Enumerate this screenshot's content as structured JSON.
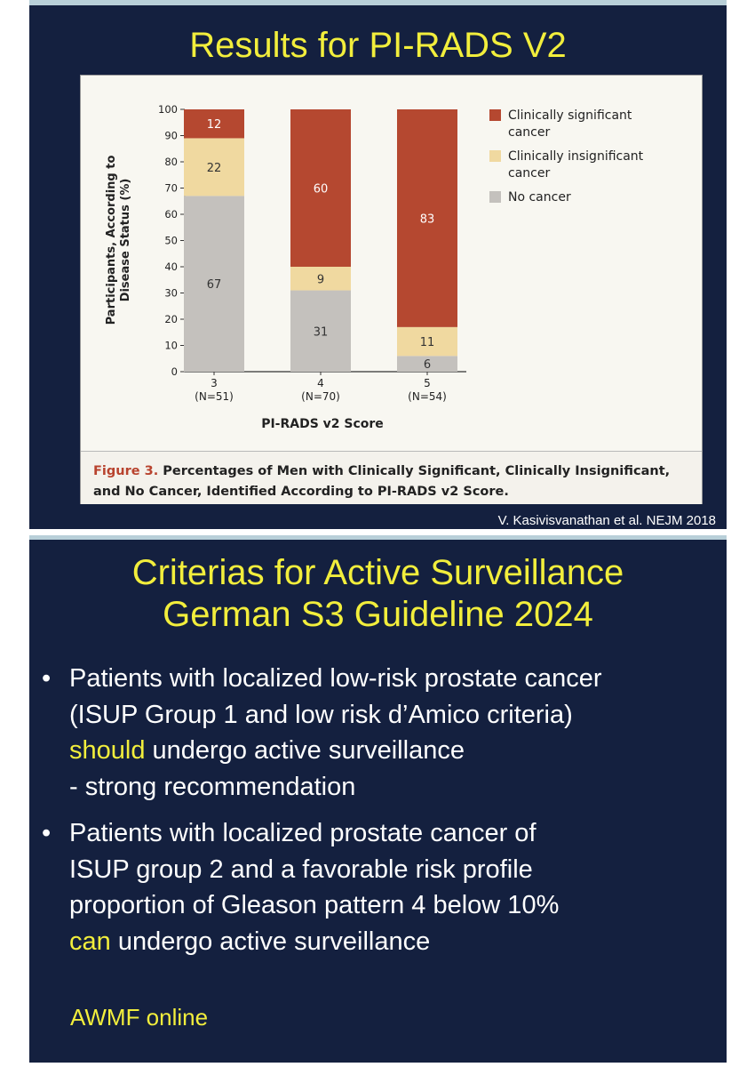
{
  "slide1": {
    "title": "Results for PI-RADS V2",
    "figure_label": "Figure 3.",
    "figure_caption": "Percentages of Men with Clinically Significant, Clinically Insignificant, and No Cancer, Identified According to PI-RADS v2 Score.",
    "citation": "V. Kasivisvanathan et al. NEJM 2018"
  },
  "chart_data": {
    "type": "bar",
    "stacked": true,
    "categories": [
      "3",
      "4",
      "5"
    ],
    "category_sublabels": [
      "(N=51)",
      "(N=70)",
      "(N=54)"
    ],
    "series": [
      {
        "name": "No cancer",
        "values": [
          67,
          31,
          6
        ],
        "color": "#c4c1bd"
      },
      {
        "name": "Clinically insignificant cancer",
        "values": [
          22,
          9,
          11
        ],
        "color": "#f0d9a0"
      },
      {
        "name": "Clinically significant cancer",
        "values": [
          12,
          60,
          83
        ],
        "color": "#b54830"
      }
    ],
    "legend_lines": [
      [
        "Clinically significant",
        "cancer"
      ],
      [
        "Clinically insignificant",
        "cancer"
      ],
      [
        "No cancer"
      ]
    ],
    "xlabel": "PI-RADS v2 Score",
    "ylabel_lines": [
      "Participants, According to",
      "Disease Status (%)"
    ],
    "ylim": [
      0,
      100
    ],
    "yticks": [
      0,
      10,
      20,
      30,
      40,
      50,
      60,
      70,
      80,
      90,
      100
    ],
    "legend_position": "right",
    "grid": false
  },
  "slide2": {
    "title_lines": [
      "Criterias for Active Surveillance",
      "German S3 Guideline 2024"
    ],
    "bullet_mark": "•",
    "bullet1": {
      "line1": "Patients with localized low-risk prostate cancer",
      "line2": "(ISUP Group 1 and low risk d’Amico criteria)",
      "highlight": "should",
      "line3_rest": " undergo active surveillance",
      "line4": "- strong recommendation"
    },
    "bullet2": {
      "line1": "Patients with localized prostate cancer of",
      "line2": "ISUP group 2 and a favorable risk profile",
      "line3": "proportion of Gleason pattern 4 below 10%",
      "highlight": "can",
      "line4_rest": " undergo active surveillance"
    },
    "source": "AWMF online"
  },
  "colors": {
    "slide_bg": "#14203f",
    "title_yellow": "#f2ee3c",
    "caption_red": "#b8432e"
  }
}
